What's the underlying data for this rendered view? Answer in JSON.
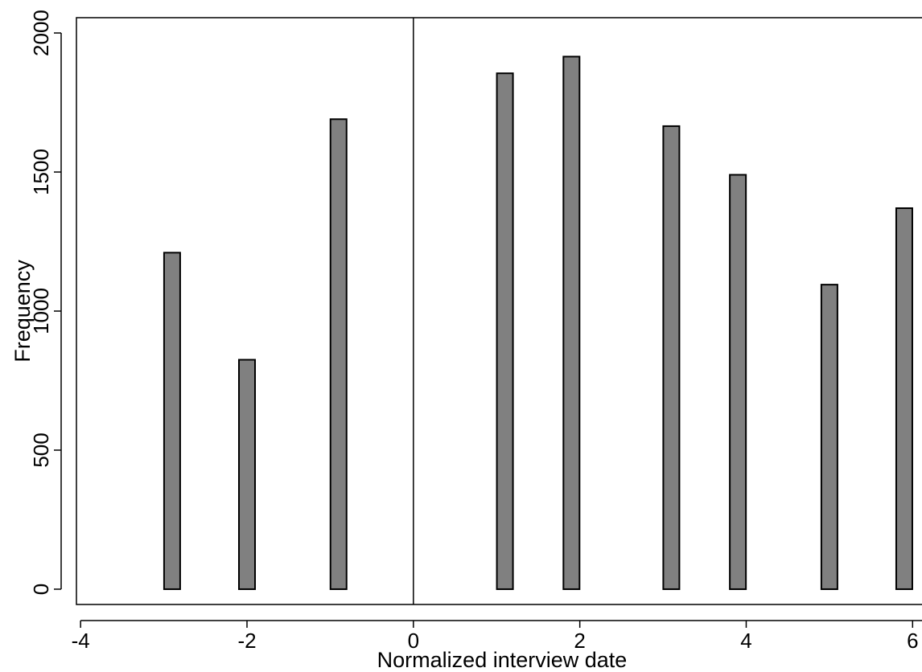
{
  "chart_data": {
    "type": "bar",
    "title": "",
    "xlabel": "Normalized interview date",
    "ylabel": "Frequency",
    "x": [
      -2.9,
      -2,
      -0.9,
      1.1,
      1.9,
      3.1,
      3.9,
      5,
      5.9
    ],
    "values": [
      1210,
      825,
      1690,
      1855,
      1915,
      1665,
      1490,
      1095,
      1370
    ],
    "xlim": [
      -4.05,
      6.2
    ],
    "ylim": [
      -55,
      2055
    ],
    "xticks": [
      "-4",
      "-2",
      "0",
      "2",
      "4",
      "6"
    ],
    "yticks": [
      "0",
      "500",
      "1000",
      "1500",
      "2000"
    ],
    "reference_line_x": 0,
    "bar_color": "#808080",
    "grid": false,
    "legend": "none"
  }
}
